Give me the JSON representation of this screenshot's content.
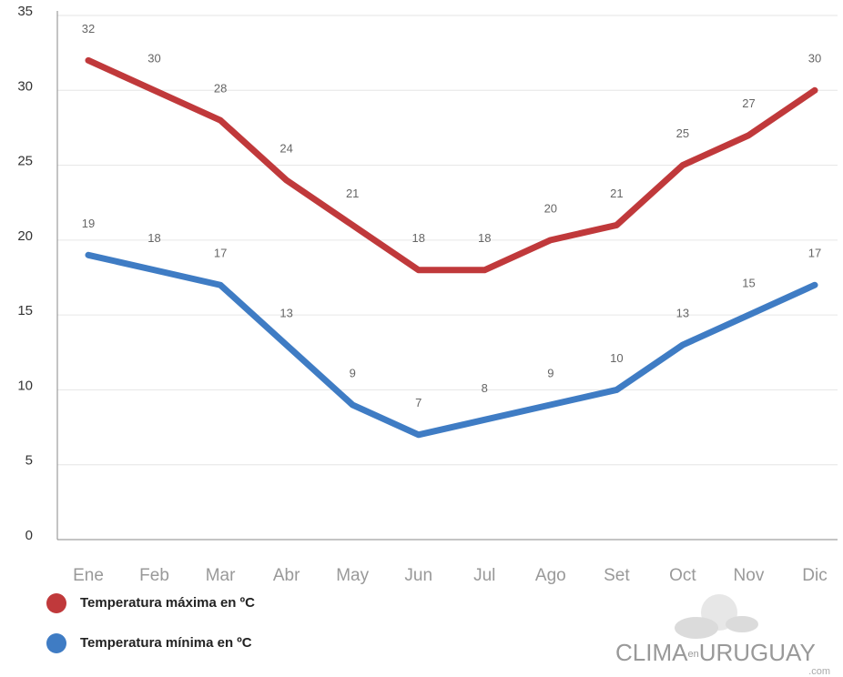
{
  "chart_data": {
    "type": "line",
    "categories": [
      "Ene",
      "Feb",
      "Mar",
      "Abr",
      "May",
      "Jun",
      "Jul",
      "Ago",
      "Set",
      "Oct",
      "Nov",
      "Dic"
    ],
    "series": [
      {
        "name": "Temperatura máxima en ºC",
        "color": "#c0393b",
        "values": [
          32,
          30,
          28,
          24,
          21,
          18,
          18,
          20,
          21,
          25,
          27,
          30
        ]
      },
      {
        "name": "Temperatura mínima en ºC",
        "color": "#3f7cc4",
        "values": [
          19,
          18,
          17,
          13,
          9,
          7,
          8,
          9,
          10,
          13,
          15,
          17
        ]
      }
    ],
    "ylim": [
      0,
      35
    ],
    "yticks": [
      0,
      5,
      10,
      15,
      20,
      25,
      30,
      35
    ],
    "grid": true,
    "legend": "bottom-left",
    "watermark": {
      "brand": "CLIMA",
      "mid": "en",
      "country": "URUGUAY",
      "domain": ".com"
    }
  }
}
